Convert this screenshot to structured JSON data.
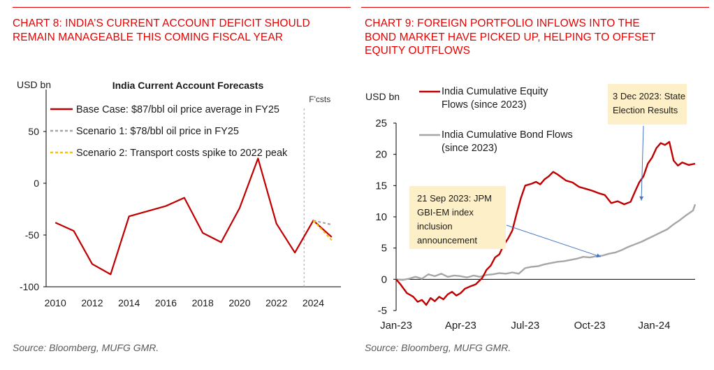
{
  "charts": {
    "left": {
      "heading": "CHART 8: INDIA’S CURRENT ACCOUNT DEFICIT SHOULD\nREMAIN MANAGEABLE THIS COMING FISCAL YEAR",
      "source": "Source: Bloomberg, MUFG GMR."
    },
    "right": {
      "heading": "CHART 9: FOREIGN PORTFOLIO INFLOWS INTO THE\nBOND MARKET HAVE PICKED UP, HELPING TO OFFSET\nEQUITY OUTFLOWS",
      "source": "Source: Bloomberg, MUFG GMR."
    }
  },
  "colors": {
    "accent": "#e60000",
    "dark_red": "#c00000",
    "grey": "#a6a6a6",
    "yellow": "#ffc000",
    "dashed_divider": "#8fa8d8",
    "annotation_bg": "#fdf0c8",
    "arrow": "#4472c4"
  },
  "chart_data": [
    {
      "type": "line",
      "title": "India Current Account Forecasts",
      "ylabel": "USD bn",
      "ylim": [
        -100,
        70
      ],
      "yticks": [
        "50",
        "0",
        "-50",
        "-100"
      ],
      "xticks": [
        "2010",
        "2012",
        "2014",
        "2016",
        "2018",
        "2020",
        "2022",
        "2024"
      ],
      "forecast_label": "F'csts",
      "forecast_start": 2023.5,
      "series": [
        {
          "name": "Base Case: $87/bbl oil price average in FY25",
          "color": "#c00000",
          "dash": "solid",
          "x": [
            2010,
            2011,
            2012,
            2013,
            2014,
            2015,
            2016,
            2017,
            2018,
            2019,
            2020,
            2021,
            2022,
            2023,
            2024,
            2025
          ],
          "y": [
            -38,
            -46,
            -78,
            -88,
            -32,
            -27,
            -22,
            -14,
            -48,
            -57,
            -24,
            24,
            -39,
            -67,
            -36,
            -52
          ]
        },
        {
          "name": "Scenario 1: $78/bbl oil price in FY25",
          "color": "#a6a6a6",
          "dash": "dashed",
          "x": [
            2024,
            2025
          ],
          "y": [
            -36,
            -40
          ]
        },
        {
          "name": "Scenario 2: Transport costs spike to 2022 peak",
          "color": "#ffc000",
          "dash": "dashed",
          "x": [
            2024,
            2025
          ],
          "y": [
            -36,
            -55
          ]
        }
      ]
    },
    {
      "type": "line",
      "ylabel": "USD bn",
      "ylim": [
        -5,
        25
      ],
      "yticks": [
        "25",
        "20",
        "15",
        "10",
        "5",
        "0",
        "-5"
      ],
      "xticks": [
        "Jan-23",
        "Apr-23",
        "Jul-23",
        "Oct-23",
        "Jan-24"
      ],
      "x_months_from_jan23": [
        0,
        3,
        6,
        9,
        12
      ],
      "series": [
        {
          "name": "India Cumulative Equity Flows (since 2023)",
          "color": "#c00000",
          "x": [
            0,
            0.2,
            0.5,
            0.8,
            1.0,
            1.2,
            1.4,
            1.6,
            1.8,
            2.0,
            2.2,
            2.4,
            2.6,
            2.8,
            3.0,
            3.2,
            3.4,
            3.7,
            4.0,
            4.2,
            4.4,
            4.6,
            4.8,
            5.0,
            5.2,
            5.4,
            5.6,
            5.8,
            6.0,
            6.3,
            6.5,
            6.7,
            6.9,
            7.1,
            7.3,
            7.5,
            7.7,
            7.9,
            8.2,
            8.5,
            8.8,
            9.1,
            9.4,
            9.7,
            10.0,
            10.3,
            10.6,
            10.9,
            11.1,
            11.3,
            11.5,
            11.7,
            11.9,
            12.1,
            12.3,
            12.5,
            12.7,
            12.9,
            13.1,
            13.3,
            13.6,
            13.9
          ],
          "y": [
            0,
            -0.8,
            -2.2,
            -2.8,
            -3.6,
            -3.3,
            -4.1,
            -3.0,
            -3.5,
            -2.8,
            -3.2,
            -2.4,
            -2.0,
            -2.6,
            -2.2,
            -1.5,
            -1.2,
            -0.8,
            0.2,
            1.5,
            2.2,
            3.5,
            4.0,
            5.5,
            6.5,
            7.8,
            10.5,
            13.0,
            15.0,
            15.3,
            15.6,
            15.2,
            16.0,
            16.5,
            17.2,
            16.8,
            16.3,
            15.8,
            15.5,
            14.8,
            14.5,
            14.2,
            13.8,
            13.5,
            12.2,
            12.5,
            12.0,
            12.4,
            14.0,
            15.5,
            16.5,
            18.5,
            19.5,
            21.0,
            21.8,
            21.5,
            22.0,
            19.0,
            18.2,
            18.7,
            18.3,
            18.5
          ]
        },
        {
          "name": "India Cumulative Bond Flows (since 2023)",
          "color": "#a6a6a6",
          "x": [
            0,
            0.3,
            0.6,
            0.9,
            1.2,
            1.5,
            1.8,
            2.1,
            2.4,
            2.7,
            3.0,
            3.3,
            3.6,
            3.9,
            4.2,
            4.5,
            4.8,
            5.1,
            5.4,
            5.7,
            6.0,
            6.3,
            6.6,
            6.9,
            7.2,
            7.5,
            7.8,
            8.1,
            8.4,
            8.7,
            9.0,
            9.3,
            9.6,
            9.9,
            10.2,
            10.5,
            10.8,
            11.1,
            11.4,
            11.7,
            12.0,
            12.3,
            12.6,
            12.9,
            13.2,
            13.5,
            13.8,
            13.9
          ],
          "y": [
            0,
            -0.1,
            0.1,
            0.4,
            0.1,
            0.8,
            0.5,
            0.9,
            0.4,
            0.6,
            0.5,
            0.3,
            0.6,
            0.4,
            0.7,
            0.8,
            1.0,
            0.9,
            1.1,
            0.9,
            1.8,
            2.0,
            2.1,
            2.4,
            2.6,
            2.8,
            2.9,
            3.1,
            3.3,
            3.6,
            3.5,
            3.7,
            3.8,
            4.1,
            4.3,
            4.7,
            5.2,
            5.6,
            6.0,
            6.5,
            7.0,
            7.5,
            8.0,
            8.8,
            9.5,
            10.3,
            11.0,
            12.0
          ]
        }
      ],
      "annotations": [
        {
          "text": "3 Dec 2023: State Election Results"
        },
        {
          "text": "21 Sep 2023: JPM GBI-EM index inclusion announcement"
        }
      ]
    }
  ]
}
